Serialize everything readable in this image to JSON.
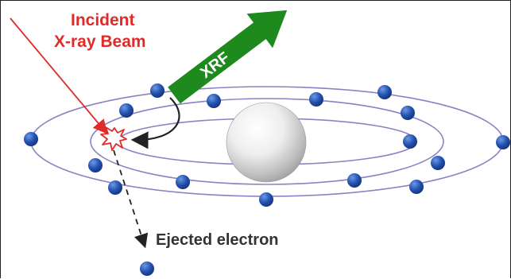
{
  "labels": {
    "incident_line1": "Incident",
    "incident_line2": "X-ray Beam",
    "xrf": "XRF",
    "ejected": "Ejected electron"
  },
  "colors": {
    "incident_beam": "#e02b2b",
    "xrf_arrow": "#1e8a1e",
    "orbit": "#8a82c4",
    "electron": "#1f4fa8",
    "nucleus": "#e8e8e8",
    "text_dark": "#333333"
  }
}
